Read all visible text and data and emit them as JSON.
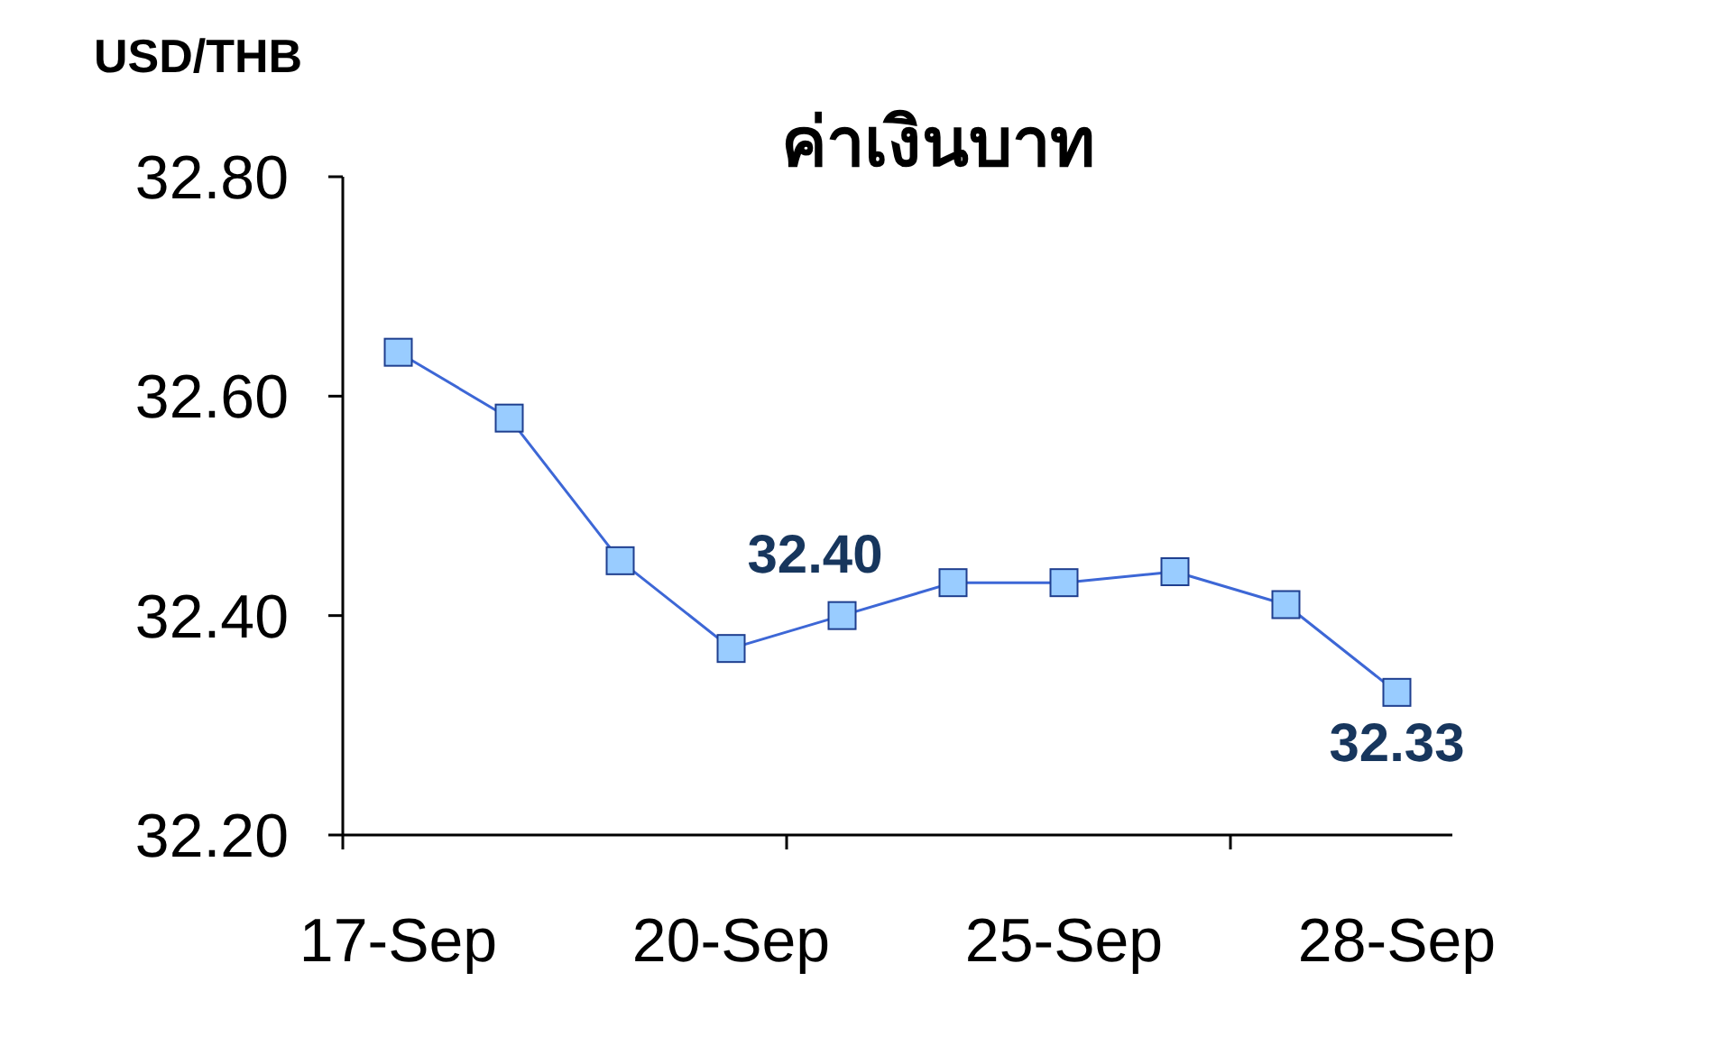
{
  "chart_data": {
    "type": "line",
    "title": "ค่าเงินบาท",
    "ylabel": "USD/THB",
    "categories": [
      "17-Sep",
      null,
      null,
      "20-Sep",
      null,
      null,
      "25-Sep",
      null,
      null,
      "28-Sep"
    ],
    "series": [
      {
        "color": "#3d67d6",
        "values": [
          32.64,
          32.58,
          32.45,
          32.37,
          32.4,
          32.43,
          32.43,
          32.44,
          32.41,
          32.33
        ],
        "value_labels": [
          null,
          null,
          null,
          null,
          "32.40",
          null,
          null,
          null,
          null,
          "32.33"
        ]
      }
    ],
    "ylim": [
      32.2,
      32.8
    ],
    "yticks": [
      {
        "value": 32.2,
        "label": "32.20"
      },
      {
        "value": 32.4,
        "label": "32.40"
      },
      {
        "value": 32.6,
        "label": "32.60"
      },
      {
        "value": 32.8,
        "label": "32.80"
      }
    ],
    "marker": "square"
  }
}
